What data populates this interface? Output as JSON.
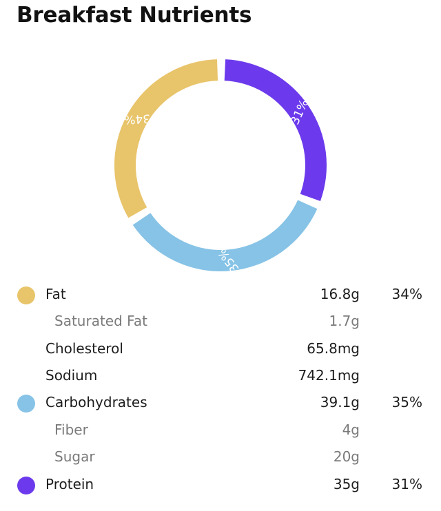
{
  "page": {
    "title": "Breakfast Nutrients"
  },
  "chart_data": {
    "type": "pie",
    "categories": [
      "Fat",
      "Protein",
      "Carbohydrates"
    ],
    "values": [
      34,
      31,
      35
    ],
    "labels": [
      "34%",
      "31%",
      "35%"
    ],
    "colors": [
      "#E8C46A",
      "#6C3AEC",
      "#86C3E6"
    ]
  },
  "nutrients": [
    {
      "name": "Fat",
      "amount": "16.8g",
      "percent": "34%",
      "color": "#E8C46A",
      "sub": false
    },
    {
      "name": "Saturated Fat",
      "amount": "1.7g",
      "percent": "",
      "color": "",
      "sub": true
    },
    {
      "name": "Cholesterol",
      "amount": "65.8mg",
      "percent": "",
      "color": "",
      "sub": false
    },
    {
      "name": "Sodium",
      "amount": "742.1mg",
      "percent": "",
      "color": "",
      "sub": false
    },
    {
      "name": "Carbohydrates",
      "amount": "39.1g",
      "percent": "35%",
      "color": "#86C3E6",
      "sub": false
    },
    {
      "name": "Fiber",
      "amount": "4g",
      "percent": "",
      "color": "",
      "sub": true
    },
    {
      "name": "Sugar",
      "amount": "20g",
      "percent": "",
      "color": "",
      "sub": true
    },
    {
      "name": "Protein",
      "amount": "35g",
      "percent": "31%",
      "color": "#6C3AEC",
      "sub": false
    }
  ]
}
